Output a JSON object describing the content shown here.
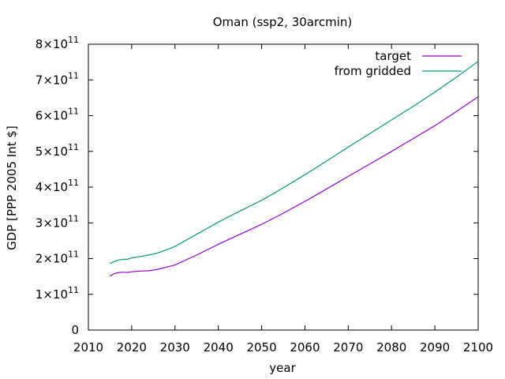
{
  "chart_data": {
    "type": "line",
    "title": "Oman (ssp2, 30arcmin)",
    "xlabel": "year",
    "ylabel": "GDP [PPP 2005 Int $]",
    "xlim": [
      2010,
      2100
    ],
    "ylim": [
      0,
      800000000000
    ],
    "xticks": [
      {
        "value": 2010,
        "label": "2010"
      },
      {
        "value": 2020,
        "label": "2020"
      },
      {
        "value": 2030,
        "label": "2030"
      },
      {
        "value": 2040,
        "label": "2040"
      },
      {
        "value": 2050,
        "label": "2050"
      },
      {
        "value": 2060,
        "label": "2060"
      },
      {
        "value": 2070,
        "label": "2070"
      },
      {
        "value": 2080,
        "label": "2080"
      },
      {
        "value": 2090,
        "label": "2090"
      },
      {
        "value": 2100,
        "label": "2100"
      }
    ],
    "yticks": [
      {
        "value": 0,
        "label": "0"
      },
      {
        "value": 100000000000,
        "mantissa": "1",
        "base": "×10",
        "exp": "11"
      },
      {
        "value": 200000000000,
        "mantissa": "2",
        "base": "×10",
        "exp": "11"
      },
      {
        "value": 300000000000,
        "mantissa": "3",
        "base": "×10",
        "exp": "11"
      },
      {
        "value": 400000000000,
        "mantissa": "4",
        "base": "×10",
        "exp": "11"
      },
      {
        "value": 500000000000,
        "mantissa": "5",
        "base": "×10",
        "exp": "11"
      },
      {
        "value": 600000000000,
        "mantissa": "6",
        "base": "×10",
        "exp": "11"
      },
      {
        "value": 700000000000,
        "mantissa": "7",
        "base": "×10",
        "exp": "11"
      },
      {
        "value": 800000000000,
        "mantissa": "8",
        "base": "×10",
        "exp": "11"
      }
    ],
    "grid": false,
    "legend_position": "top-right",
    "series": [
      {
        "name": "target",
        "color": "#9400d3",
        "x": [
          2015,
          2016,
          2017,
          2018,
          2019,
          2020,
          2022,
          2024,
          2026,
          2028,
          2030,
          2035,
          2040,
          2045,
          2050,
          2055,
          2060,
          2065,
          2070,
          2075,
          2080,
          2085,
          2090,
          2095,
          2100
        ],
        "y": [
          151000000000,
          158000000000,
          161000000000,
          162000000000,
          161000000000,
          163000000000,
          165000000000,
          166000000000,
          170000000000,
          176000000000,
          182000000000,
          210000000000,
          240000000000,
          268000000000,
          296000000000,
          327000000000,
          360000000000,
          395000000000,
          430000000000,
          465000000000,
          500000000000,
          536000000000,
          572000000000,
          612000000000,
          653000000000
        ]
      },
      {
        "name": "from gridded",
        "color": "#009e73",
        "x": [
          2015,
          2016,
          2017,
          2018,
          2019,
          2020,
          2022,
          2024,
          2026,
          2028,
          2030,
          2035,
          2040,
          2045,
          2050,
          2055,
          2060,
          2065,
          2070,
          2075,
          2080,
          2085,
          2090,
          2095,
          2100
        ],
        "y": [
          186000000000,
          192000000000,
          196000000000,
          198000000000,
          198000000000,
          202000000000,
          206000000000,
          210000000000,
          216000000000,
          224000000000,
          234000000000,
          268000000000,
          302000000000,
          333000000000,
          363000000000,
          398000000000,
          435000000000,
          473000000000,
          512000000000,
          550000000000,
          588000000000,
          626000000000,
          666000000000,
          708000000000,
          752000000000
        ]
      }
    ]
  }
}
